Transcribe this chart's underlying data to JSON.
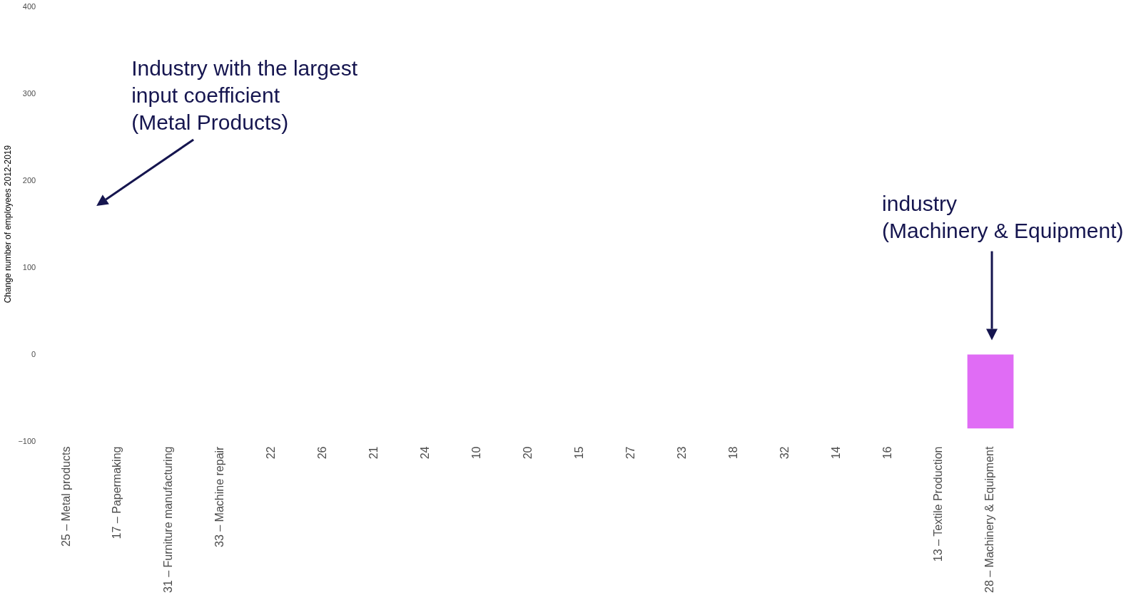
{
  "chart_data": {
    "type": "bar",
    "ylabel": "Change number of employees 2012-2019",
    "categories": [
      "25 – Metal products",
      "17 – Papermaking",
      "31 – Furniture manufacturing",
      "33 – Machine repair",
      "22",
      "26",
      "21",
      "24",
      "10",
      "20",
      "15",
      "27",
      "23",
      "18",
      "32",
      "14",
      "16",
      "13 – Textile Production",
      "28 – Machinery & Equipment"
    ],
    "values": [
      null,
      null,
      null,
      null,
      null,
      null,
      null,
      null,
      null,
      null,
      null,
      null,
      null,
      null,
      null,
      null,
      null,
      null,
      -85
    ],
    "color": "#e06cf5",
    "ylim": [
      -100,
      400
    ],
    "yticks": [
      -100,
      0,
      100,
      200,
      300,
      400
    ],
    "grid": false,
    "legend": false,
    "annotations": [
      "Industry with the largest\ninput coefficient\n(Metal Products)",
      "industry\n(Machinery & Equipment)"
    ]
  }
}
